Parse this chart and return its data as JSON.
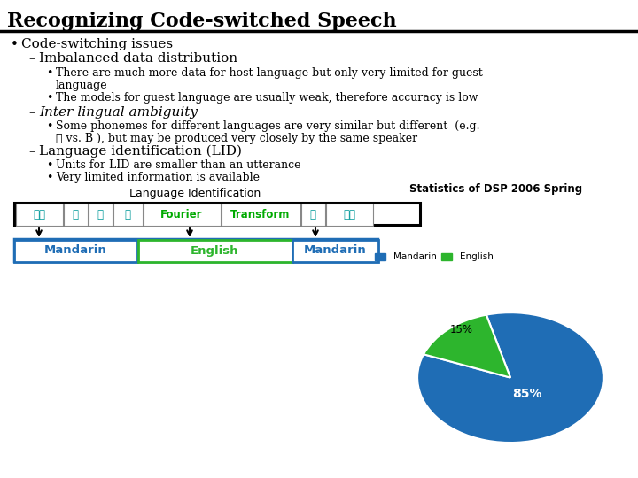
{
  "title": "Recognizing Code-switched Speech",
  "bg_color": "#ffffff",
  "bullet1": "Code-switching issues",
  "sub1": "Imbalanced data distribution",
  "sub1_text1": "There are much more data for host language but only very limited for guest",
  "sub1_text1b": "language",
  "sub1_text2": "The models for guest language are usually weak, therefore accuracy is low",
  "sub2": "Inter-lingual ambiguity",
  "sub2_text1": "Some phonemes for different languages are very similar but different  (e.g.",
  "sub2_text1b": "兒 vs. B ), but may be produced very closely by the same speaker",
  "sub3": "Language identification (LID)",
  "sub3_text1": "Units for LID are smaller than an utterance",
  "sub3_text2": "Very limited information is available",
  "pie_title": "Statistics of DSP 2006 Spring",
  "pie_labels": [
    "Mandarin",
    "English"
  ],
  "pie_values": [
    85,
    15
  ],
  "pie_colors": [
    "#1F6DB5",
    "#2DB52D"
  ],
  "lang_id_title": "Language Identification",
  "chinese_tokens": [
    "這裡",
    "是",
    "在",
    "講",
    "Fourier",
    "Transform",
    "的",
    "性質"
  ],
  "chinese_colors": [
    "#009999",
    "#009999",
    "#009999",
    "#009999",
    "#00AA00",
    "#00AA00",
    "#009999",
    "#009999"
  ],
  "segment_labels": [
    "Mandarin",
    "English",
    "Mandarin"
  ],
  "segment_colors": [
    "#1F6DB5",
    "#2DB52D",
    "#1F6DB5"
  ]
}
